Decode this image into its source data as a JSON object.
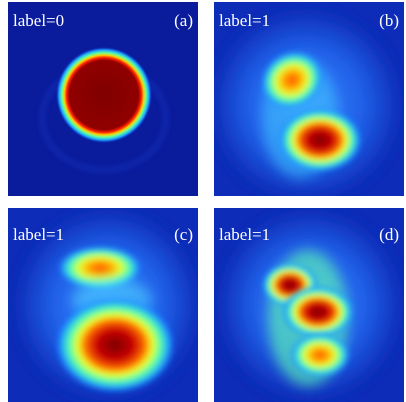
{
  "panels": [
    {
      "label": "label=0",
      "tag": "(a)"
    },
    {
      "label": "label=1",
      "tag": "(b)"
    },
    {
      "label": "label=1",
      "tag": "(c)"
    },
    {
      "label": "label=1",
      "tag": "(d)"
    }
  ]
}
